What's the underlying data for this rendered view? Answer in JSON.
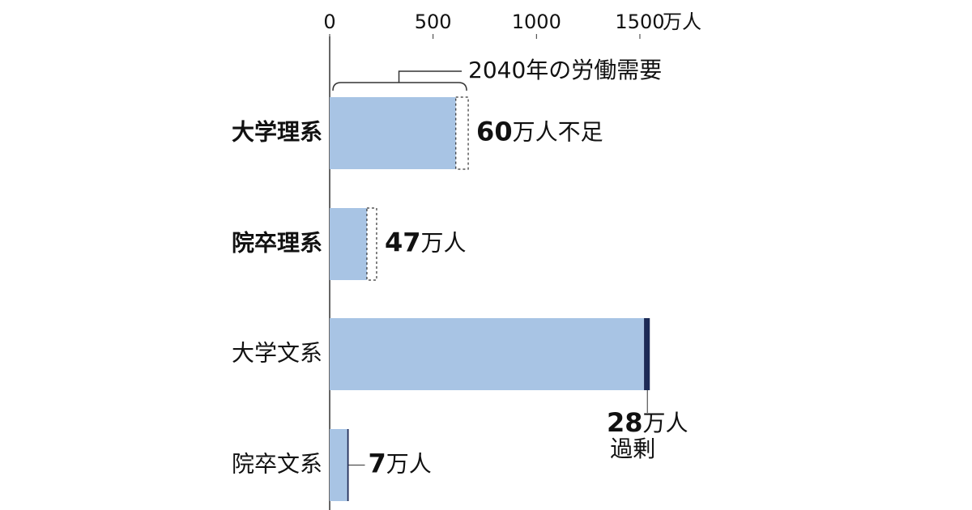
{
  "chart_data": {
    "type": "stacked-barh",
    "categories": [
      "大学理系",
      "院卒理系",
      "大学文系",
      "院卒文系"
    ],
    "category_weight": [
      "bold",
      "bold",
      "normal",
      "normal"
    ],
    "series": [
      {
        "color": "#a8c4e4",
        "style": "solid",
        "values": [
          610,
          180,
          1520,
          85
        ]
      },
      {
        "color": "#ffffff",
        "style": "dashed",
        "values": [
          60,
          47,
          null,
          null
        ],
        "value_labels": [
          "60万人不足",
          "47万人",
          null,
          null
        ]
      },
      {
        "color": "#1c2a56",
        "style": "solid",
        "values": [
          null,
          null,
          28,
          7
        ],
        "value_labels": [
          null,
          null,
          "28万人過剰",
          "7万人"
        ]
      }
    ],
    "xlim": [
      0,
      1600
    ],
    "xticks": [
      0,
      500,
      1000,
      1500
    ],
    "x_unit": "万人",
    "annotation": "2040年の労働需要"
  }
}
